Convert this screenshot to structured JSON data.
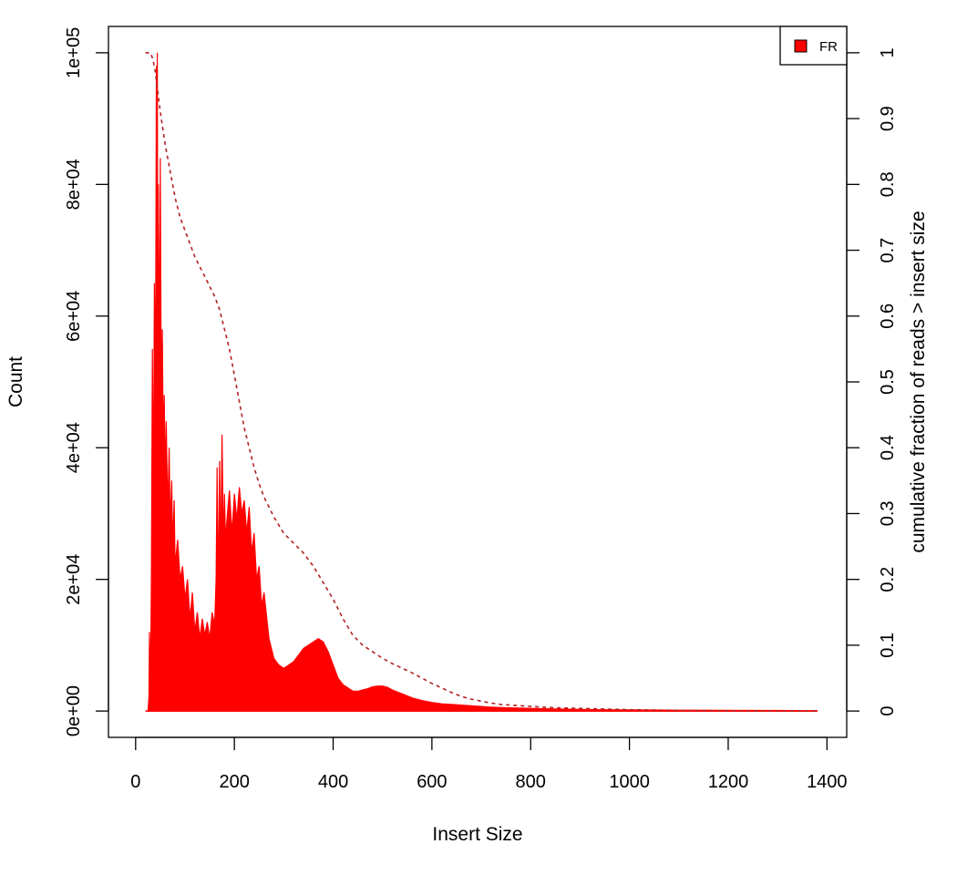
{
  "chart_data": {
    "type": "area",
    "xlabel": "Insert Size",
    "ylabel": "Count",
    "y2label": "cumulative fraction of reads > insert size",
    "xlim": [
      -55,
      1440
    ],
    "ylim": [
      -4000,
      104000
    ],
    "y2lim": [
      -0.04,
      1.04
    ],
    "x_ticks": [
      0,
      200,
      400,
      600,
      800,
      1000,
      1200,
      1400
    ],
    "y_ticks": [
      0,
      20000,
      40000,
      60000,
      80000,
      100000
    ],
    "y_tick_labels": [
      "0e+00",
      "2e+04",
      "4e+04",
      "6e+04",
      "8e+04",
      "1e+05"
    ],
    "y2_ticks": [
      0,
      0.1,
      0.2,
      0.3,
      0.4,
      0.5,
      0.6,
      0.7,
      0.8,
      0.9,
      1
    ],
    "y2_tick_labels": [
      "0",
      "0.1",
      "0.2",
      "0.3",
      "0.4",
      "0.5",
      "0.6",
      "0.7",
      "0.8",
      "0.9",
      "1"
    ],
    "legend": {
      "position": "top-right",
      "entries": [
        {
          "label": "FR",
          "color": "#ff0000"
        }
      ]
    },
    "colors": {
      "histogram": "#ff0000",
      "cumulative": "#b22222"
    },
    "series": [
      {
        "name": "FR",
        "kind": "histogram",
        "x": [
          20,
          25,
          27,
          28,
          30,
          32,
          34,
          36,
          38,
          40,
          42,
          43,
          44,
          45,
          46,
          48,
          50,
          52,
          54,
          56,
          58,
          60,
          62,
          65,
          68,
          70,
          73,
          75,
          78,
          80,
          85,
          90,
          95,
          100,
          105,
          110,
          115,
          120,
          125,
          130,
          135,
          140,
          145,
          150,
          155,
          160,
          163,
          165,
          167,
          170,
          172,
          175,
          178,
          180,
          182,
          185,
          190,
          195,
          200,
          205,
          210,
          215,
          220,
          225,
          230,
          235,
          240,
          245,
          250,
          255,
          260,
          270,
          280,
          290,
          300,
          310,
          320,
          330,
          340,
          350,
          360,
          370,
          380,
          390,
          400,
          410,
          420,
          430,
          440,
          450,
          460,
          470,
          480,
          490,
          500,
          510,
          520,
          540,
          560,
          580,
          600,
          620,
          640,
          660,
          680,
          700,
          720,
          750,
          800,
          850,
          900,
          950,
          1000,
          1050,
          1100,
          1200,
          1300,
          1380
        ],
        "y": [
          0,
          0,
          2000,
          12000,
          3000,
          20000,
          55000,
          30000,
          65000,
          45000,
          98000,
          60000,
          100000,
          55000,
          80000,
          50000,
          84000,
          45000,
          58000,
          40000,
          48000,
          35000,
          44000,
          30000,
          40000,
          28000,
          35000,
          25000,
          32000,
          22000,
          26000,
          20000,
          22000,
          17000,
          20000,
          14000,
          18000,
          12000,
          15000,
          11000,
          14000,
          11500,
          13500,
          11000,
          15000,
          13000,
          20000,
          37000,
          17000,
          38000,
          22000,
          42000,
          25000,
          33000,
          26000,
          29000,
          33500,
          27000,
          33000,
          29000,
          34000,
          30000,
          32000,
          27000,
          31000,
          24000,
          27000,
          20000,
          22000,
          16000,
          18000,
          11000,
          8000,
          7000,
          6500,
          7000,
          7500,
          8500,
          9500,
          10000,
          10500,
          11000,
          10500,
          9000,
          7000,
          5000,
          4000,
          3500,
          3000,
          3000,
          3200,
          3400,
          3700,
          3800,
          3800,
          3600,
          3200,
          2600,
          2000,
          1600,
          1300,
          1100,
          1000,
          900,
          800,
          700,
          600,
          500,
          400,
          300,
          250,
          200,
          180,
          150,
          120,
          100,
          80,
          60
        ],
        "note": ""
      },
      {
        "name": "",
        "kind": "cumulative",
        "x": [
          20,
          30,
          35,
          40,
          45,
          50,
          60,
          70,
          80,
          90,
          100,
          110,
          120,
          130,
          140,
          150,
          160,
          170,
          180,
          190,
          200,
          210,
          220,
          230,
          240,
          250,
          260,
          280,
          300,
          320,
          340,
          360,
          380,
          400,
          420,
          440,
          460,
          480,
          500,
          520,
          540,
          560,
          580,
          600,
          620,
          640,
          660,
          680,
          700,
          720,
          740,
          760,
          780,
          800,
          850,
          900,
          950,
          1000,
          1100,
          1200,
          1300,
          1380
        ],
        "y": [
          1.0,
          1.0,
          0.99,
          0.97,
          0.94,
          0.91,
          0.86,
          0.82,
          0.78,
          0.75,
          0.73,
          0.71,
          0.69,
          0.675,
          0.66,
          0.645,
          0.63,
          0.61,
          0.58,
          0.55,
          0.51,
          0.47,
          0.43,
          0.4,
          0.37,
          0.345,
          0.325,
          0.295,
          0.27,
          0.255,
          0.24,
          0.22,
          0.195,
          0.17,
          0.14,
          0.115,
          0.1,
          0.09,
          0.08,
          0.072,
          0.065,
          0.058,
          0.05,
          0.042,
          0.035,
          0.028,
          0.022,
          0.018,
          0.015,
          0.012,
          0.01,
          0.009,
          0.008,
          0.007,
          0.005,
          0.004,
          0.003,
          0.002,
          0.001,
          0.0005,
          0.0002,
          0.0
        ]
      }
    ]
  }
}
